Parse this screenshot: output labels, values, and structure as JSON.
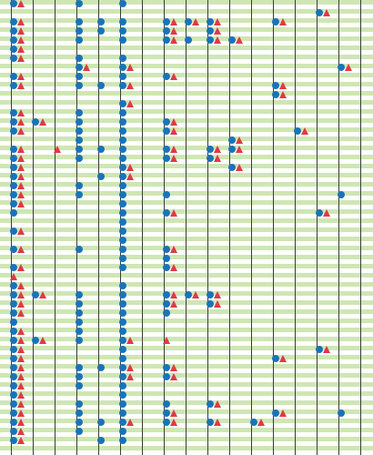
{
  "colors": {
    "band": "#cfe6b4",
    "line": "#3c3c3c",
    "dot": "#1a73b8",
    "triangle": "#e03a44"
  },
  "icons": {
    "dot": "blue-circle-icon",
    "triangle": "red-triangle-icon"
  },
  "grid": {
    "columns": 17,
    "rows": [
      [
        [
          0,
          "dt"
        ],
        [
          3,
          "d"
        ],
        [
          5,
          "d"
        ]
      ],
      [
        [
          14,
          "dt"
        ]
      ],
      [
        [
          0,
          "dt"
        ],
        [
          3,
          "d"
        ],
        [
          4,
          "d"
        ],
        [
          5,
          "d"
        ],
        [
          7,
          "dt"
        ],
        [
          8,
          "dt"
        ],
        [
          9,
          "dt"
        ],
        [
          12,
          "dt"
        ]
      ],
      [
        [
          0,
          "dt"
        ],
        [
          3,
          "d"
        ],
        [
          4,
          "d"
        ],
        [
          5,
          "d"
        ],
        [
          7,
          "dt"
        ],
        [
          9,
          "dt"
        ]
      ],
      [
        [
          0,
          "dt"
        ],
        [
          3,
          "d"
        ],
        [
          5,
          "d"
        ],
        [
          7,
          "dt"
        ],
        [
          8,
          "d"
        ],
        [
          9,
          "dt"
        ],
        [
          10,
          "dt"
        ]
      ],
      [
        [
          0,
          "dt"
        ]
      ],
      [
        [
          0,
          "dt"
        ],
        [
          3,
          "d"
        ],
        [
          5,
          "d"
        ]
      ],
      [
        [
          3,
          "dt"
        ],
        [
          5,
          "dt"
        ],
        [
          15,
          "dt"
        ]
      ],
      [
        [
          0,
          "dt"
        ],
        [
          3,
          "d"
        ],
        [
          5,
          "d"
        ],
        [
          7,
          "dt"
        ]
      ],
      [
        [
          0,
          "dt"
        ],
        [
          3,
          "d"
        ],
        [
          4,
          "d"
        ],
        [
          5,
          "dt"
        ],
        [
          12,
          "dt"
        ]
      ],
      [
        [
          12,
          "dt"
        ]
      ],
      [
        [
          5,
          "dt"
        ]
      ],
      [
        [
          0,
          "dt"
        ],
        [
          3,
          "d"
        ],
        [
          5,
          "d"
        ]
      ],
      [
        [
          0,
          "dt"
        ],
        [
          1,
          "dt"
        ],
        [
          3,
          "d"
        ],
        [
          5,
          "d"
        ],
        [
          7,
          "dt"
        ]
      ],
      [
        [
          0,
          "dt"
        ],
        [
          3,
          "d"
        ],
        [
          5,
          "d"
        ],
        [
          7,
          "dt"
        ],
        [
          13,
          "dt"
        ]
      ],
      [
        [
          3,
          "d"
        ],
        [
          5,
          "d"
        ],
        [
          10,
          "dt"
        ]
      ],
      [
        [
          0,
          "dt"
        ],
        [
          2,
          "t"
        ],
        [
          3,
          "d"
        ],
        [
          4,
          "d"
        ],
        [
          5,
          "d"
        ],
        [
          7,
          "dt"
        ],
        [
          9,
          "dt"
        ],
        [
          10,
          "dt"
        ]
      ],
      [
        [
          0,
          "dt"
        ],
        [
          3,
          "d"
        ],
        [
          5,
          "d"
        ],
        [
          7,
          "dt"
        ],
        [
          9,
          "dt"
        ]
      ],
      [
        [
          0,
          "dt"
        ],
        [
          5,
          "dt"
        ],
        [
          10,
          "dt"
        ]
      ],
      [
        [
          0,
          "dt"
        ],
        [
          4,
          "d"
        ],
        [
          5,
          "dt"
        ]
      ],
      [
        [
          0,
          "dt"
        ],
        [
          3,
          "d"
        ],
        [
          5,
          "d"
        ]
      ],
      [
        [
          0,
          "dt"
        ],
        [
          3,
          "d"
        ],
        [
          5,
          "d"
        ],
        [
          7,
          "d"
        ],
        [
          15,
          "d"
        ]
      ],
      [
        [
          0,
          "dt"
        ],
        [
          5,
          "d"
        ]
      ],
      [
        [
          0,
          "d"
        ],
        [
          5,
          "d"
        ],
        [
          7,
          "dt"
        ],
        [
          14,
          "dt"
        ]
      ],
      [
        [
          5,
          "d"
        ]
      ],
      [
        [
          0,
          "dt"
        ],
        [
          5,
          "d"
        ]
      ],
      [
        [
          5,
          "d"
        ]
      ],
      [
        [
          0,
          "dt"
        ],
        [
          3,
          "d"
        ],
        [
          5,
          "d"
        ],
        [
          7,
          "dt"
        ]
      ],
      [
        [
          5,
          "d"
        ],
        [
          7,
          "d"
        ]
      ],
      [
        [
          0,
          "dt"
        ],
        [
          5,
          "d"
        ],
        [
          7,
          "dt"
        ]
      ],
      [
        [
          0,
          "t"
        ]
      ],
      [
        [
          0,
          "dt"
        ],
        [
          5,
          "d"
        ]
      ],
      [
        [
          0,
          "dt"
        ],
        [
          1,
          "dt"
        ],
        [
          3,
          "d"
        ],
        [
          5,
          "d"
        ],
        [
          7,
          "dt"
        ],
        [
          8,
          "dt"
        ],
        [
          9,
          "dt"
        ]
      ],
      [
        [
          0,
          "dt"
        ],
        [
          3,
          "d"
        ],
        [
          5,
          "d"
        ],
        [
          7,
          "dt"
        ],
        [
          9,
          "dt"
        ]
      ],
      [
        [
          0,
          "dt"
        ],
        [
          3,
          "d"
        ],
        [
          5,
          "d"
        ],
        [
          7,
          "d"
        ]
      ],
      [
        [
          0,
          "d"
        ],
        [
          3,
          "d"
        ],
        [
          5,
          "d"
        ]
      ],
      [
        [
          0,
          "dt"
        ],
        [
          3,
          "d"
        ],
        [
          5,
          "d"
        ]
      ],
      [
        [
          0,
          "dt"
        ],
        [
          1,
          "dt"
        ],
        [
          3,
          "d"
        ],
        [
          5,
          "dt"
        ],
        [
          7,
          "t"
        ]
      ],
      [
        [
          0,
          "dt"
        ],
        [
          5,
          "d"
        ],
        [
          14,
          "dt"
        ]
      ],
      [
        [
          0,
          "dt"
        ],
        [
          5,
          "d"
        ],
        [
          12,
          "dt"
        ]
      ],
      [
        [
          0,
          "dt"
        ],
        [
          3,
          "d"
        ],
        [
          4,
          "d"
        ],
        [
          5,
          "dt"
        ],
        [
          7,
          "dt"
        ]
      ],
      [
        [
          0,
          "dt"
        ],
        [
          3,
          "d"
        ],
        [
          5,
          "dt"
        ],
        [
          7,
          "dt"
        ]
      ],
      [
        [
          0,
          "dt"
        ],
        [
          3,
          "d"
        ],
        [
          5,
          "d"
        ]
      ],
      [
        [
          0,
          "dt"
        ],
        [
          5,
          "d"
        ]
      ],
      [
        [
          0,
          "dt"
        ],
        [
          3,
          "d"
        ],
        [
          5,
          "d"
        ],
        [
          7,
          "d"
        ],
        [
          9,
          "dt"
        ]
      ],
      [
        [
          0,
          "dt"
        ],
        [
          3,
          "d"
        ],
        [
          5,
          "d"
        ],
        [
          7,
          "dt"
        ],
        [
          12,
          "dt"
        ],
        [
          15,
          "d"
        ]
      ],
      [
        [
          0,
          "dt"
        ],
        [
          3,
          "d"
        ],
        [
          4,
          "d"
        ],
        [
          5,
          "dt"
        ],
        [
          7,
          "dt"
        ],
        [
          9,
          "dt"
        ],
        [
          11,
          "dt"
        ]
      ],
      [
        [
          0,
          "dt"
        ],
        [
          3,
          "d"
        ],
        [
          5,
          "d"
        ]
      ],
      [
        [
          0,
          "dt"
        ],
        [
          4,
          "d"
        ],
        [
          5,
          "d"
        ]
      ]
    ]
  }
}
